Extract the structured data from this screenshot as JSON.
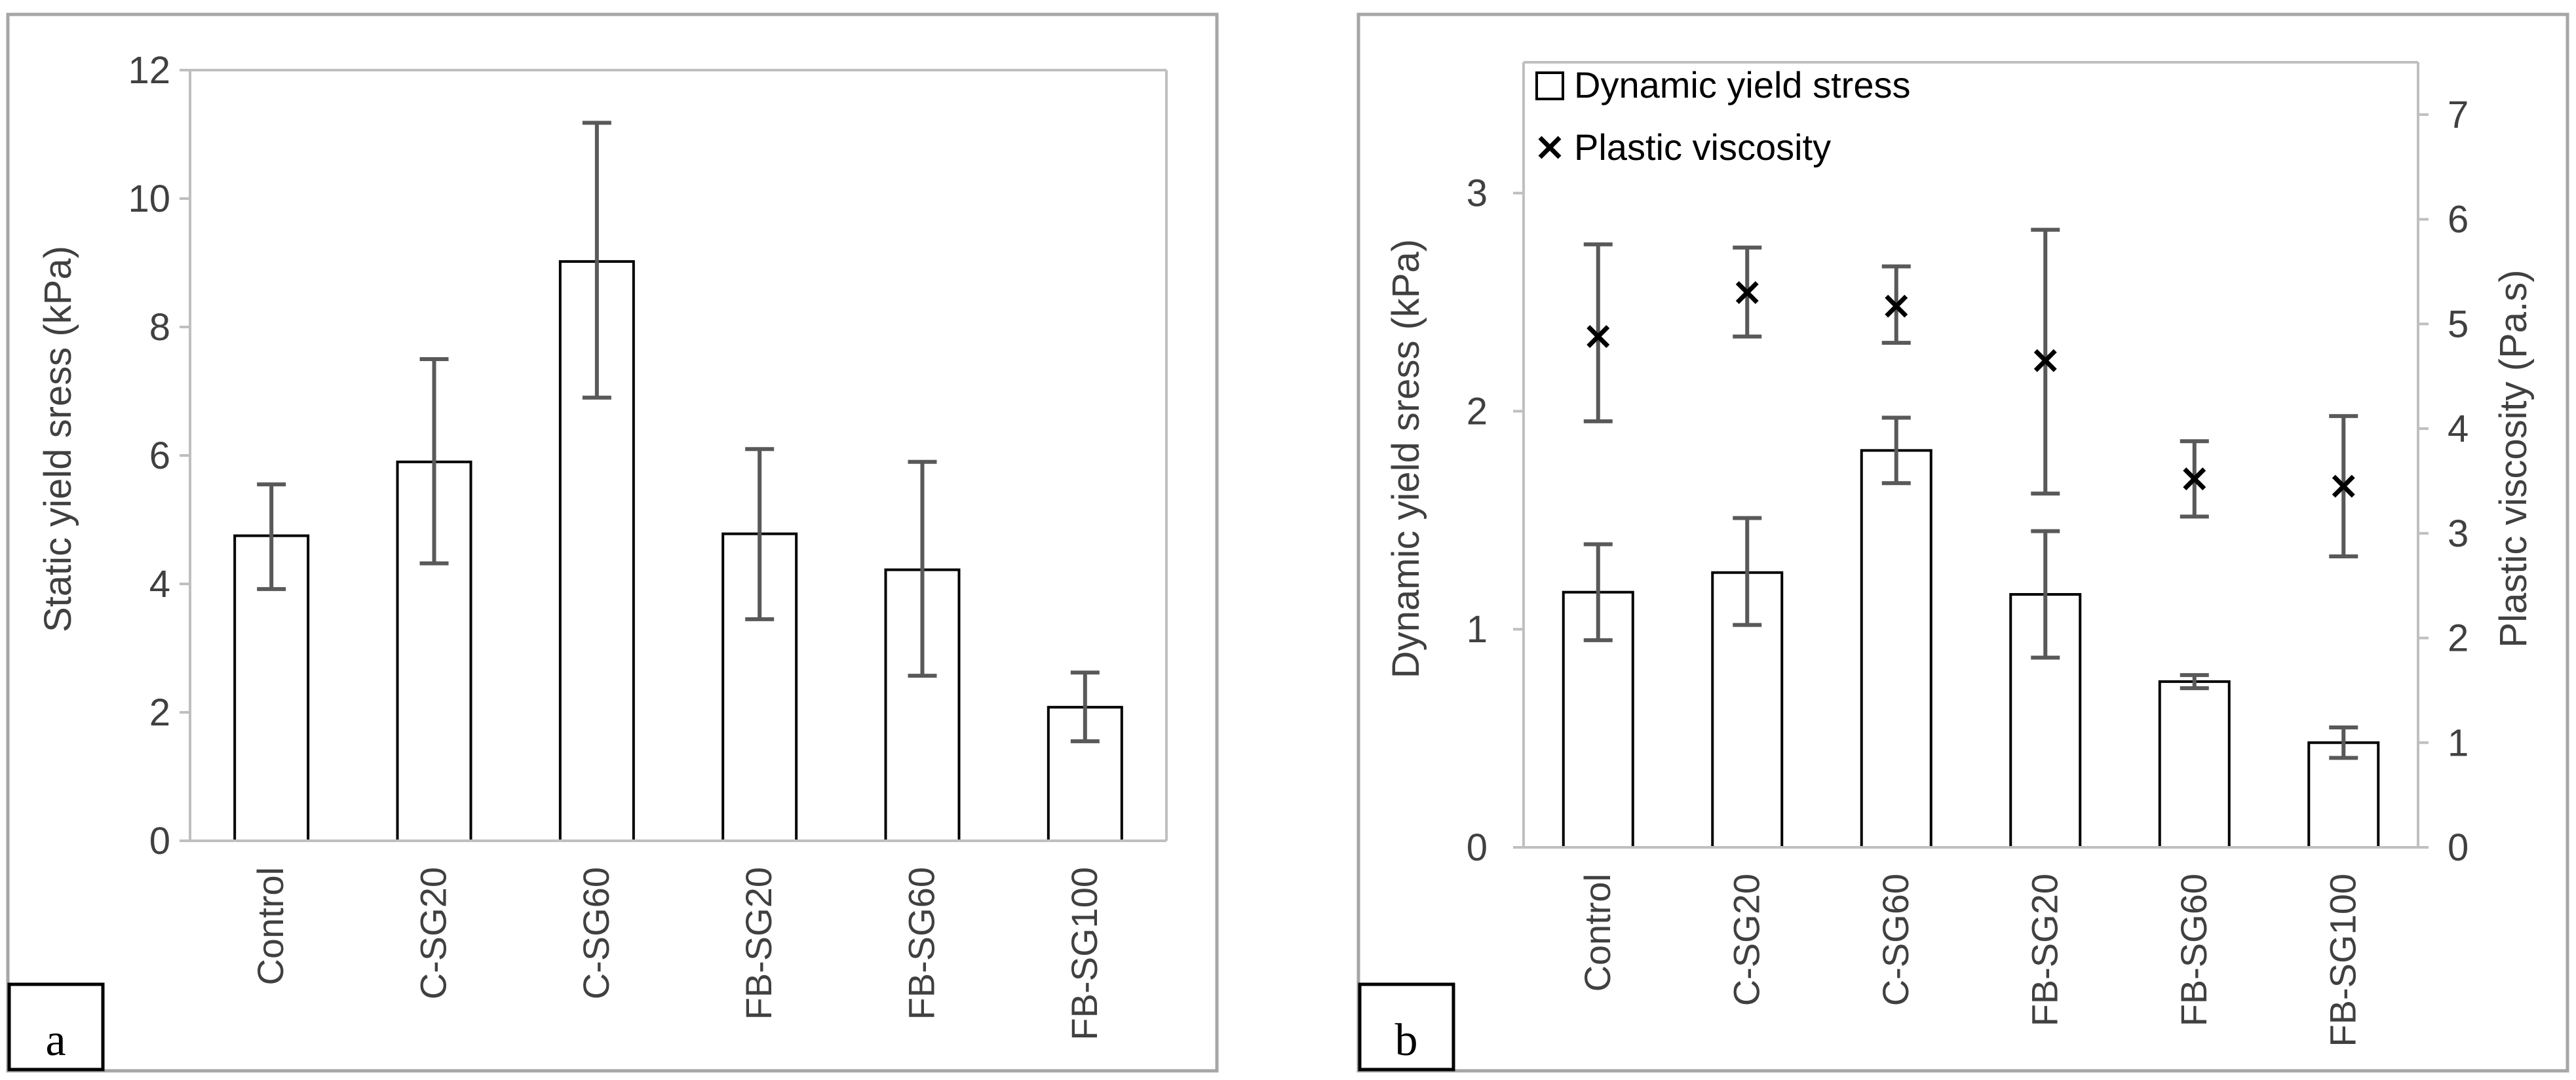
{
  "chart_data": [
    {
      "panel": "a",
      "type": "bar",
      "ylabel": "Static yield sress (kPa)",
      "xlabel": "",
      "ylim": [
        0,
        12
      ],
      "yticks": [
        0,
        2,
        4,
        6,
        8,
        10,
        12
      ],
      "grid": false,
      "categories": [
        "Control",
        "C-SG20",
        "C-SG60",
        "FB-SG20",
        "FB-SG60",
        "FB-SG100"
      ],
      "series": [
        {
          "name": "Static yield stress",
          "values": [
            4.75,
            5.9,
            9.02,
            4.78,
            4.22,
            2.08
          ],
          "error_low": [
            3.92,
            4.32,
            6.9,
            3.45,
            2.57,
            1.55
          ],
          "error_high": [
            5.55,
            7.5,
            11.18,
            6.1,
            5.9,
            2.62
          ]
        }
      ]
    },
    {
      "panel": "b",
      "type": "bar",
      "ylabel": "Dynamic yield sress (kPa)",
      "y2label": "Plastic viscosity (Pa.s)",
      "xlabel": "",
      "ylim": [
        0,
        3.6
      ],
      "yticks": [
        0,
        1,
        2,
        3
      ],
      "y2lim": [
        0,
        7.5
      ],
      "y2ticks": [
        0,
        1,
        2,
        3,
        4,
        5,
        6,
        7
      ],
      "grid": false,
      "legend_position": "top-left",
      "categories": [
        "Control",
        "C-SG20",
        "C-SG60",
        "FB-SG20",
        "FB-SG60",
        "FB-SG100"
      ],
      "series": [
        {
          "name": "Dynamic yield stress",
          "marker": "bar",
          "axis": "left",
          "values": [
            1.17,
            1.26,
            1.82,
            1.16,
            0.76,
            0.48
          ],
          "error_low": [
            0.95,
            1.02,
            1.67,
            0.87,
            0.73,
            0.41
          ],
          "error_high": [
            1.39,
            1.51,
            1.97,
            1.45,
            0.79,
            0.55
          ]
        },
        {
          "name": "Plastic viscosity",
          "marker": "x",
          "axis": "right",
          "values": [
            4.88,
            5.3,
            5.17,
            4.65,
            3.52,
            3.45
          ],
          "error_low": [
            4.07,
            4.88,
            4.82,
            3.38,
            3.16,
            2.78
          ],
          "error_high": [
            5.76,
            5.73,
            5.55,
            5.9,
            3.88,
            4.12
          ]
        }
      ]
    }
  ]
}
